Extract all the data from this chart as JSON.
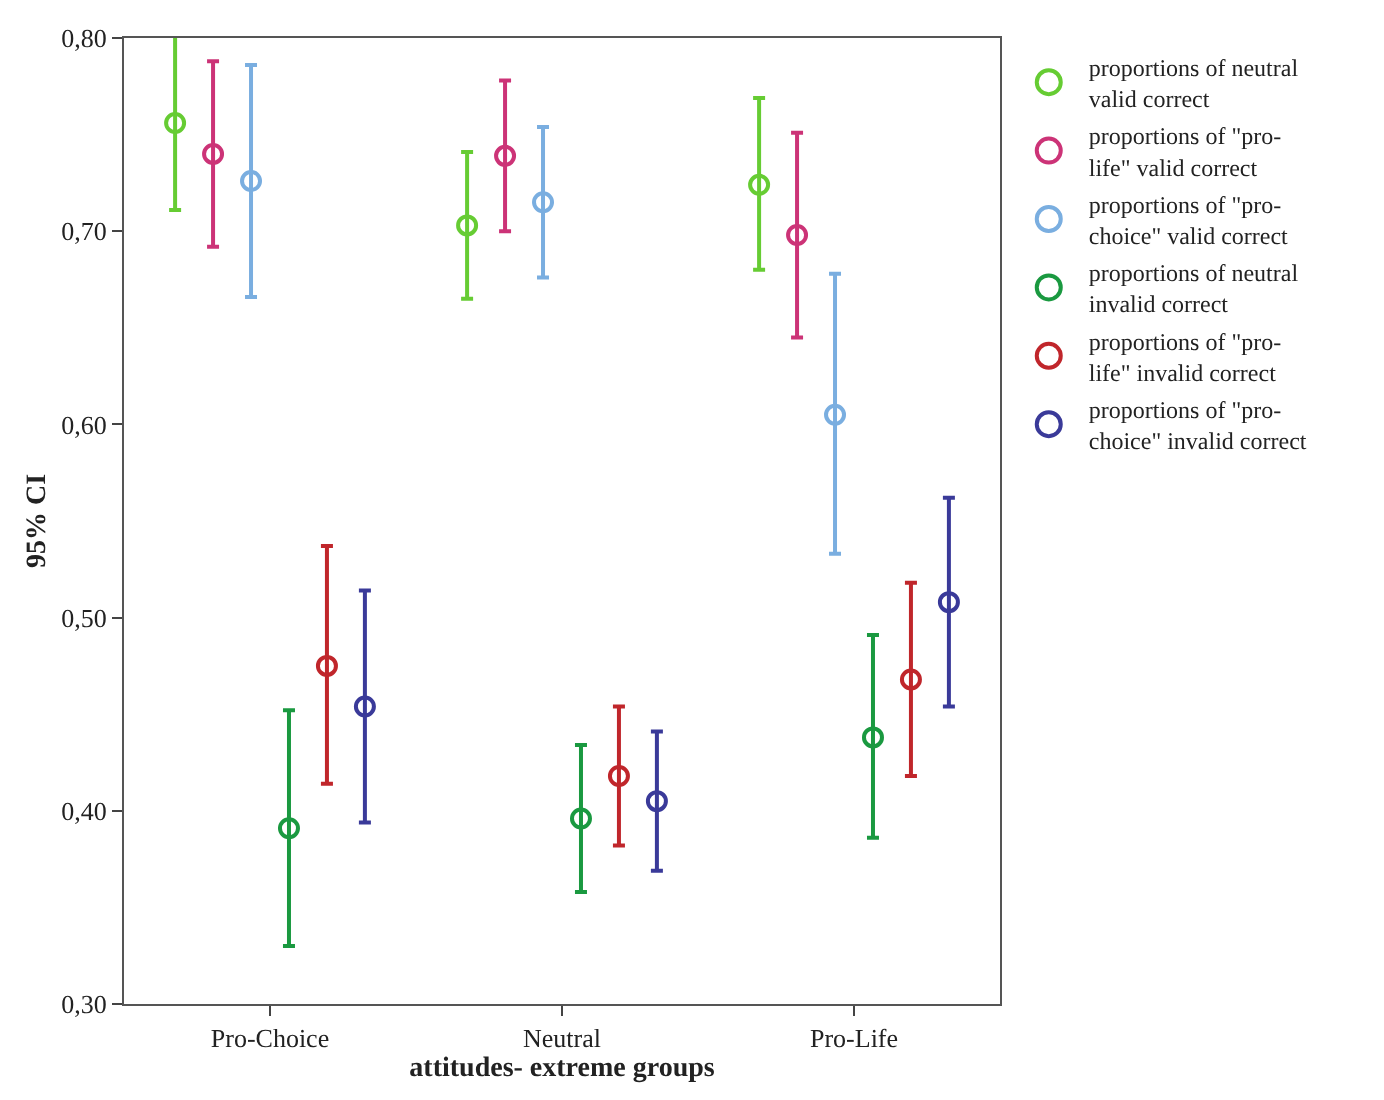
{
  "chart_data": {
    "type": "scatter",
    "xlabel": "attitudes- extreme groups",
    "ylabel": "95% CI",
    "categories": [
      "Pro-Choice",
      "Neutral",
      "Pro-Life"
    ],
    "ylim": [
      0.3,
      0.8
    ],
    "yticks": [
      {
        "value": 0.3,
        "label": "0,30"
      },
      {
        "value": 0.4,
        "label": "0,40"
      },
      {
        "value": 0.5,
        "label": "0,50"
      },
      {
        "value": 0.6,
        "label": "0,60"
      },
      {
        "value": 0.7,
        "label": "0,70"
      },
      {
        "value": 0.8,
        "label": "0,80"
      }
    ],
    "legend": "top right",
    "marker": "circle",
    "series": [
      {
        "name": "proportions of neutral valid correct",
        "color": "#66cc33",
        "values": [
          0.756,
          0.703,
          0.724
        ],
        "errors": [
          [
            0.711,
            0.801
          ],
          [
            0.665,
            0.741
          ],
          [
            0.68,
            0.769
          ]
        ]
      },
      {
        "name": "proportions of \"pro-life\" valid correct",
        "color": "#cc3377",
        "values": [
          0.74,
          0.739,
          0.698
        ],
        "errors": [
          [
            0.692,
            0.788
          ],
          [
            0.7,
            0.778
          ],
          [
            0.645,
            0.751
          ]
        ]
      },
      {
        "name": "proportions of \"pro-choice\" valid correct",
        "color": "#7aaee0",
        "values": [
          0.726,
          0.715,
          0.605
        ],
        "errors": [
          [
            0.666,
            0.786
          ],
          [
            0.676,
            0.754
          ],
          [
            0.533,
            0.678
          ]
        ]
      },
      {
        "name": "proportions of neutral invalid correct",
        "color": "#1a9940",
        "values": [
          0.391,
          0.396,
          0.438
        ],
        "errors": [
          [
            0.33,
            0.452
          ],
          [
            0.358,
            0.434
          ],
          [
            0.386,
            0.491
          ]
        ]
      },
      {
        "name": "proportions of \"pro-life\" invalid correct",
        "color": "#c0262b",
        "values": [
          0.475,
          0.418,
          0.468
        ],
        "errors": [
          [
            0.414,
            0.537
          ],
          [
            0.382,
            0.454
          ],
          [
            0.418,
            0.518
          ]
        ]
      },
      {
        "name": "proportions of \"pro-choice\" invalid correct",
        "color": "#3a3a99",
        "values": [
          0.454,
          0.405,
          0.508
        ],
        "errors": [
          [
            0.394,
            0.514
          ],
          [
            0.369,
            0.441
          ],
          [
            0.454,
            0.562
          ]
        ]
      }
    ]
  }
}
